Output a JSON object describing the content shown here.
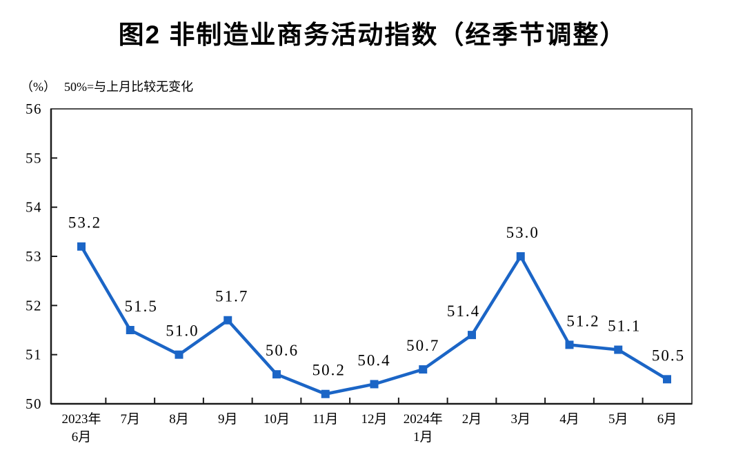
{
  "title": "图2 非制造业商务活动指数（经季节调整）",
  "unit_label": "（%）",
  "note": "50%=与上月比较无变化",
  "colors": {
    "line": "#1b65c6",
    "frame": "#4d4d4d",
    "axis": "#1a1a1a",
    "text": "#000000",
    "background": "#ffffff"
  },
  "chart_data": {
    "type": "line",
    "title": "图2 非制造业商务活动指数（经季节调整）",
    "subtitle_note": "50%=与上月比较无变化",
    "xlabel": "",
    "ylabel": "（%）",
    "categories": [
      "2023年\n6月",
      "7月",
      "8月",
      "9月",
      "10月",
      "11月",
      "12月",
      "2024年\n1月",
      "2月",
      "3月",
      "4月",
      "5月",
      "6月"
    ],
    "values": [
      53.2,
      51.5,
      51.0,
      51.7,
      50.6,
      50.2,
      50.4,
      50.7,
      51.4,
      53.0,
      51.2,
      51.1,
      50.5
    ],
    "data_labels": [
      "53.2",
      "51.5",
      "51.0",
      "51.7",
      "50.6",
      "50.2",
      "50.4",
      "50.7",
      "51.4",
      "53.0",
      "51.2",
      "51.1",
      "50.5"
    ],
    "ylim": [
      50,
      56
    ],
    "ytick_step": 1,
    "yticks": [
      50,
      51,
      52,
      53,
      54,
      55,
      56
    ],
    "grid": false,
    "legend": "none",
    "marker": "square"
  }
}
